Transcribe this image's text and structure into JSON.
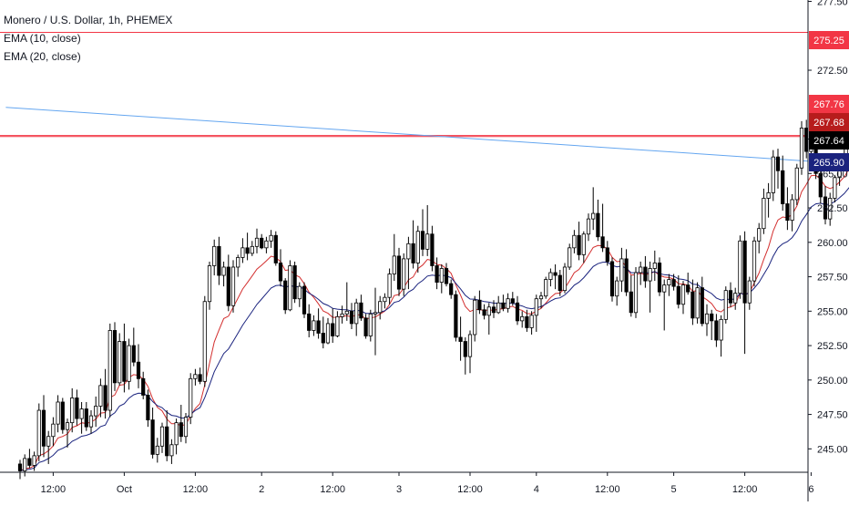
{
  "legend": {
    "symbol": "Monero / U.S. Dollar, 1h, PHEMEX",
    "ema10": "EMA (10, close)",
    "ema20": "EMA (20, close)"
  },
  "colors": {
    "up": "#ffffff",
    "down": "#000000",
    "wick": "#000000",
    "ema10": "#d32f2f",
    "ema20": "#1a237e",
    "trendline": "#64a6f0",
    "hline": "#f23645"
  },
  "chart_data": {
    "type": "candlestick",
    "title": "Monero / U.S. Dollar, 1h, PHEMEX",
    "x_ticks": [
      "12:00",
      "Oct",
      "12:00",
      "2",
      "12:00",
      "3",
      "12:00",
      "4",
      "12:00",
      "5",
      "12:00",
      "6"
    ],
    "y_ticks": [
      "245.00",
      "247.50",
      "250.00",
      "252.50",
      "255.00",
      "257.50",
      "260.00",
      "262.50",
      "265.00",
      "267.50",
      "272.50",
      "277.50"
    ],
    "ylim": [
      243.3,
      277.6
    ],
    "price_tags": [
      {
        "label": "275.25",
        "color": "#f23645"
      },
      {
        "label": "267.76",
        "color": "#f23645"
      },
      {
        "label": "267.68",
        "color": "#b71c1c"
      },
      {
        "label": "267.64",
        "color": "#000000"
      },
      {
        "label": "265.90",
        "color": "#1a237e"
      }
    ],
    "horizontal_lines": [
      275.25,
      267.76,
      267.68
    ],
    "trendline": {
      "from_bar": -3,
      "from_price": 269.8,
      "to_bar": 155,
      "to_price": 265.9
    },
    "candles": [
      [
        243.9,
        244.2,
        242.8,
        243.4
      ],
      [
        243.4,
        244.6,
        243.0,
        244.3
      ],
      [
        244.3,
        245.0,
        243.6,
        243.8
      ],
      [
        243.8,
        244.8,
        243.4,
        244.5
      ],
      [
        244.5,
        248.3,
        244.1,
        247.8
      ],
      [
        247.8,
        248.9,
        244.4,
        245.2
      ],
      [
        245.2,
        246.3,
        243.9,
        245.9
      ],
      [
        245.9,
        247.3,
        245.2,
        246.8
      ],
      [
        246.8,
        248.9,
        246.2,
        248.4
      ],
      [
        248.4,
        248.7,
        246.1,
        246.4
      ],
      [
        246.4,
        247.2,
        245.1,
        246.9
      ],
      [
        246.9,
        249.4,
        246.2,
        248.7
      ],
      [
        248.7,
        249.3,
        246.7,
        247.2
      ],
      [
        247.2,
        248.4,
        246.1,
        247.9
      ],
      [
        247.9,
        248.4,
        246.3,
        246.6
      ],
      [
        246.6,
        247.8,
        246.1,
        247.4
      ],
      [
        247.4,
        248.8,
        246.6,
        248.1
      ],
      [
        248.1,
        250.1,
        247.3,
        249.6
      ],
      [
        249.6,
        250.8,
        247.2,
        247.8
      ],
      [
        247.8,
        254.1,
        247.3,
        253.6
      ],
      [
        253.6,
        254.2,
        249.2,
        249.8
      ],
      [
        249.8,
        253.4,
        249.6,
        252.8
      ],
      [
        252.8,
        254.1,
        249.1,
        249.9
      ],
      [
        249.9,
        253.0,
        249.3,
        252.5
      ],
      [
        252.5,
        253.8,
        251.0,
        251.3
      ],
      [
        251.3,
        252.6,
        249.4,
        250.1
      ],
      [
        250.1,
        250.6,
        248.6,
        248.9
      ],
      [
        248.9,
        249.3,
        246.6,
        247.1
      ],
      [
        247.1,
        248.0,
        244.3,
        244.6
      ],
      [
        244.6,
        245.8,
        244.0,
        245.2
      ],
      [
        245.2,
        246.9,
        244.7,
        246.6
      ],
      [
        246.6,
        247.8,
        244.1,
        244.5
      ],
      [
        244.5,
        245.7,
        243.9,
        245.3
      ],
      [
        245.3,
        247.2,
        244.6,
        246.9
      ],
      [
        246.9,
        248.2,
        245.5,
        245.9
      ],
      [
        245.9,
        247.6,
        245.4,
        247.3
      ],
      [
        247.3,
        250.5,
        246.8,
        250.1
      ],
      [
        250.1,
        250.8,
        249.6,
        250.4
      ],
      [
        250.4,
        250.9,
        249.7,
        249.9
      ],
      [
        249.9,
        256.1,
        249.5,
        255.7
      ],
      [
        255.7,
        258.6,
        255.1,
        258.3
      ],
      [
        258.3,
        260.2,
        257.6,
        259.7
      ],
      [
        259.7,
        260.4,
        256.9,
        257.6
      ],
      [
        257.6,
        258.6,
        256.8,
        258.2
      ],
      [
        258.2,
        259.1,
        255.0,
        255.4
      ],
      [
        255.4,
        258.7,
        254.9,
        258.2
      ],
      [
        258.2,
        259.1,
        257.5,
        258.9
      ],
      [
        258.9,
        260.3,
        258.5,
        259.6
      ],
      [
        259.6,
        260.7,
        258.7,
        259.2
      ],
      [
        259.2,
        260.1,
        259.0,
        259.7
      ],
      [
        259.7,
        261.0,
        259.2,
        260.3
      ],
      [
        260.3,
        260.6,
        259.5,
        259.6
      ],
      [
        259.6,
        260.4,
        259.2,
        260.1
      ],
      [
        260.1,
        260.9,
        259.6,
        260.5
      ],
      [
        260.5,
        260.8,
        258.3,
        258.5
      ],
      [
        258.5,
        259.5,
        256.8,
        257.2
      ],
      [
        257.2,
        257.4,
        254.8,
        255.1
      ],
      [
        255.1,
        258.7,
        255.0,
        258.3
      ],
      [
        258.3,
        258.6,
        255.6,
        255.9
      ],
      [
        255.9,
        257.1,
        255.3,
        256.8
      ],
      [
        256.8,
        257.1,
        254.5,
        254.8
      ],
      [
        254.8,
        255.5,
        253.1,
        253.6
      ],
      [
        253.6,
        254.7,
        253.2,
        254.3
      ],
      [
        254.3,
        255.2,
        253.0,
        253.4
      ],
      [
        253.4,
        254.6,
        252.3,
        252.7
      ],
      [
        252.7,
        254.5,
        252.6,
        254.1
      ],
      [
        254.1,
        255.2,
        252.7,
        253.2
      ],
      [
        253.2,
        255.0,
        253.1,
        254.6
      ],
      [
        254.6,
        255.4,
        254.1,
        254.8
      ],
      [
        254.8,
        257.1,
        254.3,
        255.0
      ],
      [
        255.0,
        255.6,
        253.7,
        254.1
      ],
      [
        254.1,
        255.9,
        253.2,
        255.6
      ],
      [
        255.6,
        256.2,
        254.3,
        254.5
      ],
      [
        254.5,
        254.8,
        253.0,
        253.2
      ],
      [
        253.2,
        255.1,
        252.8,
        254.8
      ],
      [
        254.8,
        256.7,
        251.8,
        254.9
      ],
      [
        254.9,
        256.1,
        254.4,
        255.7
      ],
      [
        255.7,
        256.3,
        255.2,
        256.0
      ],
      [
        256.0,
        258.1,
        255.5,
        257.7
      ],
      [
        257.7,
        260.6,
        257.2,
        259.0
      ],
      [
        259.0,
        259.6,
        256.1,
        256.6
      ],
      [
        256.6,
        259.2,
        256.1,
        258.8
      ],
      [
        258.8,
        260.4,
        256.6,
        259.9
      ],
      [
        259.9,
        261.6,
        258.1,
        258.5
      ],
      [
        258.5,
        261.2,
        257.8,
        260.8
      ],
      [
        260.8,
        262.4,
        259.0,
        259.5
      ],
      [
        259.5,
        262.7,
        259.0,
        260.6
      ],
      [
        260.6,
        261.2,
        257.9,
        258.3
      ],
      [
        258.3,
        258.9,
        256.6,
        257.1
      ],
      [
        257.1,
        258.4,
        256.3,
        258.1
      ],
      [
        258.1,
        258.5,
        256.8,
        257.0
      ],
      [
        257.0,
        257.3,
        255.9,
        256.2
      ],
      [
        256.2,
        256.5,
        252.8,
        253.1
      ],
      [
        253.1,
        254.6,
        251.4,
        252.8
      ],
      [
        252.8,
        253.1,
        250.4,
        251.7
      ],
      [
        251.7,
        253.6,
        250.5,
        253.3
      ],
      [
        253.3,
        256.1,
        252.8,
        255.8
      ],
      [
        255.8,
        256.5,
        254.8,
        255.1
      ],
      [
        255.1,
        255.5,
        254.4,
        254.7
      ],
      [
        254.7,
        255.6,
        253.3,
        255.3
      ],
      [
        255.3,
        255.8,
        254.5,
        254.9
      ],
      [
        254.9,
        256.1,
        254.8,
        255.6
      ],
      [
        255.6,
        256.2,
        255.0,
        255.2
      ],
      [
        255.2,
        256.3,
        254.9,
        255.9
      ],
      [
        255.9,
        256.4,
        255.4,
        255.6
      ],
      [
        255.6,
        256.1,
        254.0,
        254.3
      ],
      [
        254.3,
        255.0,
        253.8,
        254.6
      ],
      [
        254.6,
        255.1,
        253.5,
        253.8
      ],
      [
        253.8,
        255.0,
        253.3,
        254.7
      ],
      [
        254.7,
        256.2,
        253.5,
        255.9
      ],
      [
        255.9,
        256.4,
        255.2,
        256.1
      ],
      [
        256.1,
        257.5,
        255.9,
        257.3
      ],
      [
        257.3,
        258.1,
        256.8,
        257.8
      ],
      [
        257.8,
        258.4,
        256.6,
        257.6
      ],
      [
        257.6,
        258.0,
        256.1,
        256.5
      ],
      [
        256.5,
        258.5,
        256.3,
        258.2
      ],
      [
        258.2,
        259.9,
        258.0,
        259.6
      ],
      [
        259.6,
        260.9,
        259.2,
        260.5
      ],
      [
        260.5,
        261.5,
        258.7,
        259.1
      ],
      [
        259.1,
        260.8,
        258.5,
        260.6
      ],
      [
        260.6,
        262.1,
        260.1,
        261.7
      ],
      [
        261.7,
        264.0,
        260.9,
        262.1
      ],
      [
        262.1,
        263.1,
        260.1,
        260.4
      ],
      [
        260.4,
        262.8,
        259.3,
        259.6
      ],
      [
        259.6,
        260.1,
        258.3,
        258.6
      ],
      [
        258.6,
        258.9,
        255.7,
        256.1
      ],
      [
        256.1,
        257.5,
        255.4,
        257.2
      ],
      [
        257.2,
        259.6,
        256.4,
        258.8
      ],
      [
        258.8,
        259.5,
        256.1,
        256.4
      ],
      [
        256.4,
        257.6,
        254.6,
        254.9
      ],
      [
        254.9,
        258.2,
        254.5,
        257.8
      ],
      [
        257.8,
        258.6,
        256.9,
        258.2
      ],
      [
        258.2,
        259.0,
        256.7,
        257.2
      ],
      [
        257.2,
        258.6,
        254.9,
        258.1
      ],
      [
        258.1,
        259.4,
        257.2,
        258.5
      ],
      [
        258.5,
        258.9,
        256.1,
        256.4
      ],
      [
        256.4,
        257.3,
        253.6,
        256.9
      ],
      [
        256.9,
        257.7,
        256.1,
        257.3
      ],
      [
        257.3,
        257.7,
        256.5,
        256.8
      ],
      [
        256.8,
        257.6,
        255.2,
        255.5
      ],
      [
        255.5,
        257.2,
        254.8,
        256.9
      ],
      [
        256.9,
        257.8,
        256.2,
        256.4
      ],
      [
        256.4,
        257.3,
        254.0,
        254.5
      ],
      [
        254.5,
        257.1,
        254.1,
        256.7
      ],
      [
        256.7,
        257.5,
        253.9,
        254.1
      ],
      [
        254.1,
        255.5,
        253.2,
        254.8
      ],
      [
        254.8,
        255.1,
        252.9,
        254.3
      ],
      [
        254.3,
        254.8,
        252.4,
        252.9
      ],
      [
        252.9,
        254.7,
        251.7,
        254.4
      ],
      [
        254.4,
        256.8,
        254.1,
        256.5
      ],
      [
        256.5,
        257.1,
        255.3,
        255.6
      ],
      [
        255.6,
        256.7,
        255.1,
        256.3
      ],
      [
        256.3,
        260.5,
        255.9,
        260.1
      ],
      [
        260.1,
        260.8,
        251.9,
        255.6
      ],
      [
        255.6,
        257.5,
        255.1,
        257.2
      ],
      [
        257.2,
        260.4,
        256.8,
        260.1
      ],
      [
        260.1,
        261.4,
        259.2,
        261.0
      ],
      [
        261.0,
        263.9,
        260.6,
        263.2
      ],
      [
        263.2,
        264.3,
        261.8,
        263.6
      ],
      [
        263.6,
        266.7,
        263.0,
        266.2
      ],
      [
        266.2,
        266.8,
        263.9,
        265.2
      ],
      [
        265.2,
        266.3,
        262.3,
        262.8
      ],
      [
        262.8,
        264.0,
        260.9,
        261.6
      ],
      [
        261.6,
        263.5,
        260.8,
        263.1
      ],
      [
        263.1,
        265.7,
        262.7,
        265.4
      ],
      [
        265.4,
        268.8,
        264.9,
        268.3
      ],
      [
        268.3,
        268.9,
        266.1,
        266.6
      ],
      [
        266.6,
        268.5,
        265.9,
        267.7
      ],
      [
        267.7,
        268.2,
        264.6,
        265.0
      ],
      [
        265.0,
        265.9,
        262.8,
        263.3
      ],
      [
        263.3,
        264.1,
        261.3,
        261.7
      ],
      [
        261.7,
        263.6,
        261.2,
        263.2
      ],
      [
        263.2,
        264.9,
        262.9,
        264.7
      ],
      [
        264.7,
        266.4,
        264.1,
        265.9
      ],
      [
        265.9,
        266.8,
        265.5,
        266.4
      ],
      [
        266.4,
        268.2,
        266.1,
        267.9
      ],
      [
        267.9,
        268.8,
        267.2,
        268.5
      ],
      [
        268.5,
        270.2,
        268.1,
        269.9
      ],
      [
        269.9,
        271.9,
        269.1,
        269.3
      ],
      [
        269.3,
        270.5,
        268.8,
        270.1
      ],
      [
        270.1,
        270.4,
        268.6,
        269.0
      ],
      [
        269.0,
        269.8,
        267.4,
        267.9
      ],
      [
        267.9,
        268.4,
        264.7,
        267.64
      ]
    ]
  }
}
